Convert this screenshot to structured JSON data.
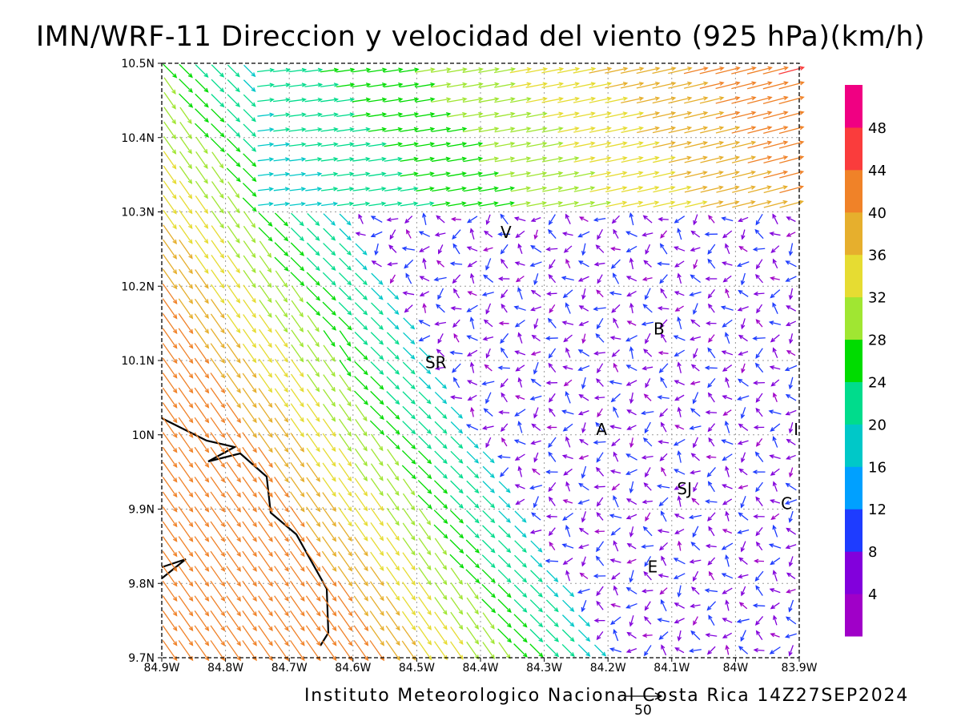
{
  "title": "IMN/WRF-11 Direccion y velocidad del viento (925 hPa)(km/h)",
  "footer": "Instituto Meteorologico Nacional Costa Rica 14Z27SEP2024",
  "reference_vector": {
    "label": "50",
    "value": 50
  },
  "chart_data": {
    "type": "vector-field",
    "title": "IMN/WRF-11 Direccion y velocidad del viento (925 hPa)(km/h)",
    "x_ticks": [
      "84.9W",
      "84.8W",
      "84.7W",
      "84.6W",
      "84.5W",
      "84.4W",
      "84.3W",
      "84.2W",
      "84.1W",
      "84W",
      "83.9W"
    ],
    "y_ticks": [
      "10.5N",
      "10.4N",
      "10.3N",
      "10.2N",
      "10.1N",
      "10N",
      "9.9N",
      "9.8N",
      "9.7N"
    ],
    "xlim": [
      -84.9,
      -83.9
    ],
    "ylim": [
      9.7,
      10.5
    ],
    "grid": true,
    "legend": "right"
  },
  "colorbar": {
    "labels": [
      "4",
      "8",
      "12",
      "16",
      "20",
      "24",
      "28",
      "32",
      "36",
      "40",
      "44",
      "48"
    ],
    "colors": [
      "#a000c8",
      "#8200dc",
      "#1e3cff",
      "#00a0ff",
      "#00c8c8",
      "#00dc8c",
      "#00dc00",
      "#a0e632",
      "#e6dc32",
      "#e6af2d",
      "#f08228",
      "#fa3c3c",
      "#f00082"
    ]
  },
  "places": [
    {
      "label": "V",
      "lon": -84.36,
      "lat": 10.265
    },
    {
      "label": "SR",
      "lon": -84.47,
      "lat": 10.09
    },
    {
      "label": "B",
      "lon": -84.12,
      "lat": 10.135
    },
    {
      "label": "A",
      "lon": -84.21,
      "lat": 10.0
    },
    {
      "label": "SJ",
      "lon": -84.08,
      "lat": 9.92
    },
    {
      "label": "C",
      "lon": -83.92,
      "lat": 9.9
    },
    {
      "label": "E",
      "lon": -84.13,
      "lat": 9.815
    },
    {
      "label": "I",
      "lon": -83.905,
      "lat": 10.0
    }
  ]
}
